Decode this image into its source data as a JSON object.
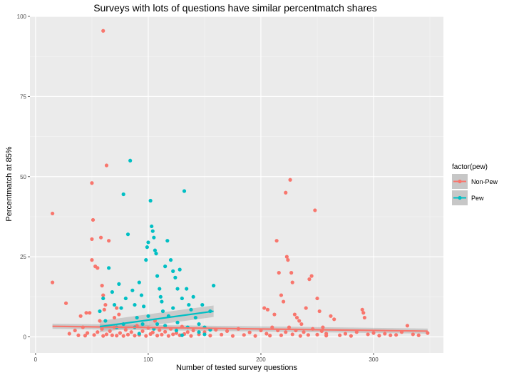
{
  "chart_data": {
    "type": "scatter",
    "title": "Surveys with lots of questions have similar percentmatch shares",
    "xlabel": "Number of tested survey questions",
    "ylabel": "Percentmatch at 85%",
    "xlim": [
      -5,
      362
    ],
    "ylim": [
      -5,
      100
    ],
    "x_ticks": [
      0,
      100,
      200,
      300
    ],
    "y_ticks": [
      0,
      25,
      50,
      75,
      100
    ],
    "grid": true,
    "legend": {
      "title": "factor(pew)",
      "position": "right",
      "entries": [
        "Non-Pew",
        "Pew"
      ]
    },
    "series": [
      {
        "name": "Non-Pew",
        "color": "#F8766D",
        "points": [
          [
            15,
            38.5
          ],
          [
            15,
            17
          ],
          [
            27,
            10.5
          ],
          [
            50,
            48
          ],
          [
            50,
            24
          ],
          [
            51,
            36.5
          ],
          [
            50,
            30.5
          ],
          [
            53,
            22
          ],
          [
            55,
            21.5
          ],
          [
            60,
            95.5
          ],
          [
            63,
            53.5
          ],
          [
            65,
            30
          ],
          [
            58,
            31
          ],
          [
            59,
            16
          ],
          [
            60,
            13
          ],
          [
            62,
            10
          ],
          [
            61,
            8.5
          ],
          [
            70,
            6
          ],
          [
            72,
            9
          ],
          [
            74,
            7
          ],
          [
            45,
            7.5
          ],
          [
            48,
            7.5
          ],
          [
            40,
            6.5
          ],
          [
            42,
            3
          ],
          [
            35,
            2
          ],
          [
            30,
            1
          ],
          [
            38,
            0.5
          ],
          [
            44,
            0.4
          ],
          [
            46,
            1.2
          ],
          [
            52,
            0.6
          ],
          [
            55,
            1.5
          ],
          [
            57,
            5
          ],
          [
            59,
            2.5
          ],
          [
            60,
            0.3
          ],
          [
            63,
            0.8
          ],
          [
            66,
            1.8
          ],
          [
            68,
            0.5
          ],
          [
            70,
            3
          ],
          [
            72,
            0.4
          ],
          [
            75,
            1.2
          ],
          [
            78,
            0.3
          ],
          [
            80,
            2.2
          ],
          [
            82,
            0.7
          ],
          [
            85,
            1.5
          ],
          [
            88,
            0.4
          ],
          [
            90,
            3.5
          ],
          [
            92,
            0.6
          ],
          [
            95,
            1.8
          ],
          [
            98,
            0.3
          ],
          [
            100,
            2.8
          ],
          [
            102,
            0.9
          ],
          [
            104,
            1.4
          ],
          [
            106,
            5
          ],
          [
            108,
            0.4
          ],
          [
            110,
            2.1
          ],
          [
            112,
            0.7
          ],
          [
            115,
            1.6
          ],
          [
            118,
            0.3
          ],
          [
            120,
            2.5
          ],
          [
            122,
            0.8
          ],
          [
            125,
            1.2
          ],
          [
            128,
            0.5
          ],
          [
            130,
            3.2
          ],
          [
            132,
            0.9
          ],
          [
            135,
            1.5
          ],
          [
            138,
            0.3
          ],
          [
            140,
            2
          ],
          [
            145,
            0.8
          ],
          [
            150,
            1.5
          ],
          [
            155,
            0.4
          ],
          [
            160,
            2.2
          ],
          [
            165,
            0.7
          ],
          [
            170,
            1.8
          ],
          [
            175,
            0.3
          ],
          [
            180,
            2.5
          ],
          [
            185,
            0.6
          ],
          [
            190,
            1.4
          ],
          [
            195,
            0.3
          ],
          [
            200,
            2
          ],
          [
            203,
            9
          ],
          [
            206,
            8.5
          ],
          [
            210,
            3
          ],
          [
            212,
            7
          ],
          [
            214,
            30
          ],
          [
            216,
            20
          ],
          [
            218,
            13
          ],
          [
            220,
            11
          ],
          [
            222,
            45
          ],
          [
            223,
            25
          ],
          [
            224,
            24
          ],
          [
            226,
            49
          ],
          [
            227,
            20
          ],
          [
            228,
            17
          ],
          [
            230,
            7
          ],
          [
            232,
            6
          ],
          [
            234,
            5
          ],
          [
            236,
            4
          ],
          [
            240,
            9
          ],
          [
            243,
            18
          ],
          [
            245,
            19
          ],
          [
            248,
            39.5
          ],
          [
            250,
            12
          ],
          [
            252,
            8
          ],
          [
            255,
            3
          ],
          [
            258,
            1
          ],
          [
            262,
            6.5
          ],
          [
            265,
            5.5
          ],
          [
            270,
            0.5
          ],
          [
            275,
            1
          ],
          [
            280,
            0.3
          ],
          [
            285,
            1.5
          ],
          [
            290,
            8.5
          ],
          [
            291,
            7.5
          ],
          [
            292,
            6
          ],
          [
            295,
            0.8
          ],
          [
            300,
            1.2
          ],
          [
            305,
            0.4
          ],
          [
            310,
            1
          ],
          [
            315,
            0.5
          ],
          [
            320,
            0.6
          ],
          [
            325,
            1.5
          ],
          [
            330,
            3.5
          ],
          [
            335,
            0.8
          ],
          [
            340,
            0.5
          ],
          [
            348,
            1.2
          ],
          [
            205,
            1
          ],
          [
            208,
            0.4
          ],
          [
            215,
            2
          ],
          [
            218,
            0.5
          ],
          [
            222,
            1.5
          ],
          [
            225,
            3
          ],
          [
            228,
            0.8
          ],
          [
            231,
            2
          ],
          [
            235,
            0.3
          ],
          [
            238,
            1.5
          ],
          [
            242,
            0.6
          ],
          [
            246,
            2.5
          ],
          [
            250,
            0.7
          ],
          [
            254,
            1.8
          ],
          [
            258,
            0.4
          ]
        ],
        "trend": {
          "x": [
            15,
            348
          ],
          "y": [
            3.3,
            1.8
          ],
          "band": 0.8
        }
      },
      {
        "name": "Pew",
        "color": "#00BFC4",
        "points": [
          [
            57,
            8
          ],
          [
            60,
            12
          ],
          [
            62,
            5
          ],
          [
            65,
            21.5
          ],
          [
            68,
            14
          ],
          [
            70,
            10
          ],
          [
            72,
            3
          ],
          [
            74,
            16.5
          ],
          [
            76,
            9
          ],
          [
            78,
            4
          ],
          [
            80,
            12
          ],
          [
            82,
            32
          ],
          [
            84,
            55
          ],
          [
            86,
            14.5
          ],
          [
            88,
            10
          ],
          [
            90,
            6
          ],
          [
            92,
            17
          ],
          [
            94,
            13
          ],
          [
            96,
            9.5
          ],
          [
            98,
            24
          ],
          [
            99,
            28
          ],
          [
            100,
            29.5
          ],
          [
            102,
            42.5
          ],
          [
            103,
            34.5
          ],
          [
            104,
            33
          ],
          [
            105,
            31
          ],
          [
            106,
            27
          ],
          [
            107,
            26
          ],
          [
            108,
            19
          ],
          [
            110,
            15
          ],
          [
            111,
            12.5
          ],
          [
            112,
            11
          ],
          [
            113,
            8
          ],
          [
            115,
            22
          ],
          [
            117,
            30
          ],
          [
            120,
            24
          ],
          [
            122,
            20.5
          ],
          [
            124,
            18.5
          ],
          [
            126,
            15
          ],
          [
            128,
            21
          ],
          [
            130,
            12
          ],
          [
            132,
            45.5
          ],
          [
            134,
            15
          ],
          [
            136,
            10
          ],
          [
            138,
            8.5
          ],
          [
            140,
            12.5
          ],
          [
            142,
            6
          ],
          [
            145,
            4
          ],
          [
            148,
            10
          ],
          [
            150,
            3
          ],
          [
            155,
            8
          ],
          [
            158,
            16
          ],
          [
            78,
            44.5
          ],
          [
            88,
            3
          ],
          [
            95,
            4
          ],
          [
            105,
            2.5
          ],
          [
            115,
            3.5
          ],
          [
            125,
            2
          ],
          [
            135,
            3
          ],
          [
            145,
            1.5
          ],
          [
            150,
            0.8
          ],
          [
            155,
            2.2
          ],
          [
            118,
            6.5
          ],
          [
            122,
            9
          ],
          [
            126,
            4.5
          ],
          [
            130,
            0.5
          ],
          [
            92,
            1
          ],
          [
            100,
            6.5
          ],
          [
            108,
            4
          ]
        ],
        "trend": {
          "x": [
            57,
            158
          ],
          "y": [
            3.2,
            8
          ],
          "band": 1.8
        }
      }
    ]
  }
}
